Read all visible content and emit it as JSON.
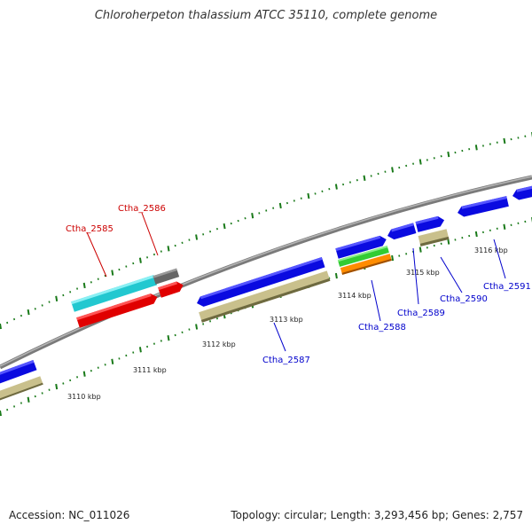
{
  "title": "Chloroherpeton thalassium ATCC 35110, complete genome",
  "footer": {
    "accession": "Accession: NC_011026",
    "summary": "Topology: circular; Length: 3,293,456 bp; Genes: 2,757"
  },
  "colors": {
    "backbone": "#8a8a8a",
    "tick": "#1a7a1a",
    "highlight_label": "#cc0000",
    "gene_label": "#0000cc"
  },
  "ticks": [
    "3110 kbp",
    "3111 kbp",
    "3112 kbp",
    "3113 kbp",
    "3114 kbp",
    "3115 kbp",
    "3116 kbp"
  ],
  "genes": [
    {
      "name": "Ctha_2585",
      "highlight": true
    },
    {
      "name": "Ctha_2586",
      "highlight": true
    },
    {
      "name": "Ctha_2587",
      "highlight": false
    },
    {
      "name": "Ctha_2588",
      "highlight": false
    },
    {
      "name": "Ctha_2589",
      "highlight": false
    },
    {
      "name": "Ctha_2590",
      "highlight": false
    },
    {
      "name": "Ctha_2591",
      "highlight": false
    }
  ]
}
